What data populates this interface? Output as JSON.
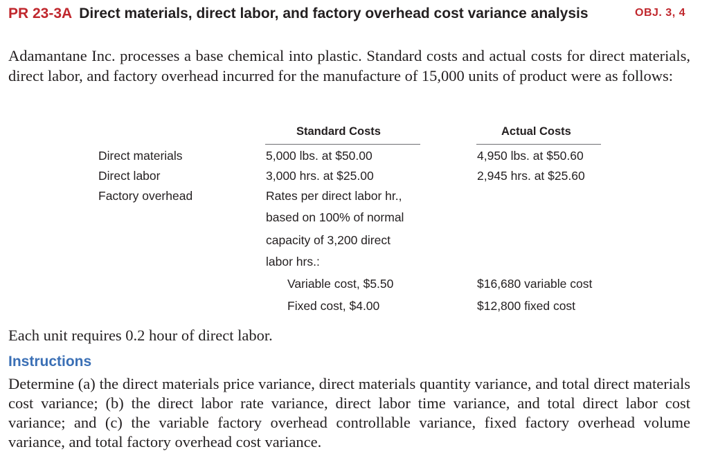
{
  "problem": {
    "id": "PR 23-3A",
    "title": "Direct materials, direct labor, and factory overhead cost variance analysis",
    "objectives": "OBJ. 3, 4"
  },
  "intro": "Adamantane Inc. processes a base chemical into plastic. Standard costs and actual costs for direct materials, direct labor, and factory overhead incurred for the manufacture of 15,000 units of product were as follows:",
  "table": {
    "headers": {
      "standard": "Standard Costs",
      "actual": "Actual Costs"
    },
    "rows": {
      "direct_materials": {
        "label": "Direct materials",
        "standard": "5,000 lbs. at $50.00",
        "actual": "4,950 lbs. at $50.60"
      },
      "direct_labor": {
        "label": "Direct labor",
        "standard": "3,000 hrs. at $25.00",
        "actual": "2,945 hrs. at $25.60"
      },
      "factory_overhead": {
        "label": "Factory overhead",
        "standard_lines": [
          "Rates per direct labor hr.,",
          "based on 100% of normal",
          "capacity of 3,200 direct",
          "labor hrs.:"
        ],
        "variable": {
          "standard": "Variable cost, $5.50",
          "actual": "$16,680 variable cost"
        },
        "fixed": {
          "standard": "Fixed cost, $4.00",
          "actual": "$12,800 fixed cost"
        }
      }
    }
  },
  "note": "Each unit requires 0.2 hour of direct labor.",
  "instructions": {
    "heading": "Instructions",
    "text": "Determine (a) the direct materials price variance, direct materials quantity variance, and total direct materials cost variance; (b) the direct labor rate variance, direct labor time variance, and total direct labor cost variance; and (c) the variable factory overhead controllable variance, fixed factory overhead volume variance, and total factory overhead cost variance."
  }
}
